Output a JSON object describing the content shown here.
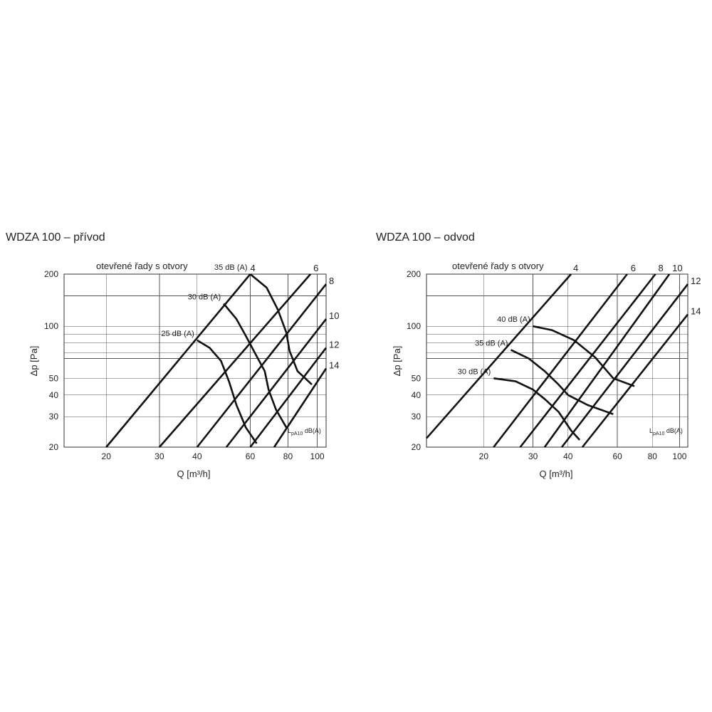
{
  "chart_data": [
    {
      "type": "line",
      "title": "WDZA 100 – přívod",
      "caption": "otevřené řady s otvory",
      "xlabel": "Q [m³/h]",
      "ylabel": "Δp [Pa]",
      "x_scale": "log",
      "y_scale": "log",
      "xlim": [
        14.5,
        107
      ],
      "ylim": [
        20,
        200
      ],
      "x_ticks": [
        20,
        30,
        40,
        60,
        80,
        100
      ],
      "y_ticks": [
        20,
        30,
        40,
        50,
        100,
        200
      ],
      "x_grid": [
        20,
        30,
        40,
        60,
        80,
        100
      ],
      "y_grid": [
        20,
        30,
        40,
        50,
        65,
        70,
        80,
        90,
        100,
        150,
        200
      ],
      "unit_label": {
        "main": "L",
        "sub": "pA10",
        "suffix": " dB(A)"
      },
      "series": [
        {
          "name": "4",
          "points": [
            [
              20,
              20
            ],
            [
              60,
              200
            ]
          ]
        },
        {
          "name": "6",
          "points": [
            [
              30,
              20
            ],
            [
              95,
              200
            ]
          ]
        },
        {
          "name": "8",
          "points": [
            [
              40,
              20
            ],
            [
              107,
              175
            ]
          ]
        },
        {
          "name": "10",
          "points": [
            [
              50,
              20
            ],
            [
              107,
              110
            ]
          ]
        },
        {
          "name": "12",
          "points": [
            [
              60,
              20
            ],
            [
              107,
              75
            ]
          ]
        },
        {
          "name": "14",
          "points": [
            [
              72,
              20
            ],
            [
              107,
              57
            ]
          ]
        }
      ],
      "noise_curves": [
        {
          "name": "25 dB (A)",
          "points": [
            [
              40,
              83
            ],
            [
              44,
              75
            ],
            [
              48,
              63
            ],
            [
              51,
              48
            ],
            [
              54,
              35
            ],
            [
              58,
              26
            ],
            [
              63,
              21
            ]
          ]
        },
        {
          "name": "30 dB (A)",
          "points": [
            [
              49,
              135
            ],
            [
              54,
              110
            ],
            [
              58,
              88
            ],
            [
              63,
              67
            ],
            [
              67,
              55
            ],
            [
              69,
              43
            ],
            [
              73,
              33
            ],
            [
              79,
              26
            ]
          ]
        },
        {
          "name": "35 dB (A)",
          "points": [
            [
              60,
              200
            ],
            [
              68,
              167
            ],
            [
              74,
              125
            ],
            [
              79,
              92
            ],
            [
              81,
              72
            ],
            [
              86,
              55
            ],
            [
              96,
              46
            ]
          ]
        }
      ]
    },
    {
      "type": "line",
      "title": "WDZA 100 – odvod",
      "caption": "otevřené řady s otvory",
      "xlabel": "Q [m³/h]",
      "ylabel": "Δp [Pa]",
      "x_scale": "log",
      "y_scale": "log",
      "xlim": [
        12.5,
        107
      ],
      "ylim": [
        20,
        200
      ],
      "x_ticks": [
        20,
        30,
        40,
        60,
        80,
        100
      ],
      "y_ticks": [
        20,
        30,
        40,
        50,
        100,
        200
      ],
      "x_grid": [
        20,
        30,
        40,
        60,
        80,
        100
      ],
      "y_grid": [
        20,
        30,
        40,
        50,
        65,
        70,
        80,
        90,
        100,
        150,
        200
      ],
      "unit_label": {
        "main": "L",
        "sub": "pA10",
        "suffix": " dB(A)"
      },
      "series": [
        {
          "name": "4",
          "points": [
            [
              12.5,
              22.5
            ],
            [
              41,
              200
            ]
          ]
        },
        {
          "name": "6",
          "points": [
            [
              21.7,
              20
            ],
            [
              65,
              200
            ]
          ]
        },
        {
          "name": "8",
          "points": [
            [
              27,
              20
            ],
            [
              82,
              200
            ]
          ]
        },
        {
          "name": "10",
          "points": [
            [
              33,
              20
            ],
            [
              92,
              200
            ]
          ]
        },
        {
          "name": "12",
          "points": [
            [
              38,
              20
            ],
            [
              107,
              175
            ]
          ]
        },
        {
          "name": "14",
          "points": [
            [
              45,
              20
            ],
            [
              107,
              117
            ]
          ]
        }
      ],
      "noise_curves": [
        {
          "name": "30 dB (A)",
          "points": [
            [
              21.7,
              50
            ],
            [
              26,
              48
            ],
            [
              30,
              43
            ],
            [
              33,
              38
            ],
            [
              37,
              32
            ],
            [
              41,
              25
            ],
            [
              44,
              22
            ]
          ]
        },
        {
          "name": "35 dB (A)",
          "points": [
            [
              25,
              73
            ],
            [
              29,
              65
            ],
            [
              33,
              55
            ],
            [
              37,
              46
            ],
            [
              40,
              40
            ],
            [
              47,
              35
            ],
            [
              58,
              31
            ]
          ]
        },
        {
          "name": "40 dB (A)",
          "points": [
            [
              30,
              100
            ],
            [
              35,
              95
            ],
            [
              42,
              83
            ],
            [
              50,
              66
            ],
            [
              58,
              50
            ],
            [
              69,
              45
            ]
          ]
        }
      ]
    }
  ]
}
